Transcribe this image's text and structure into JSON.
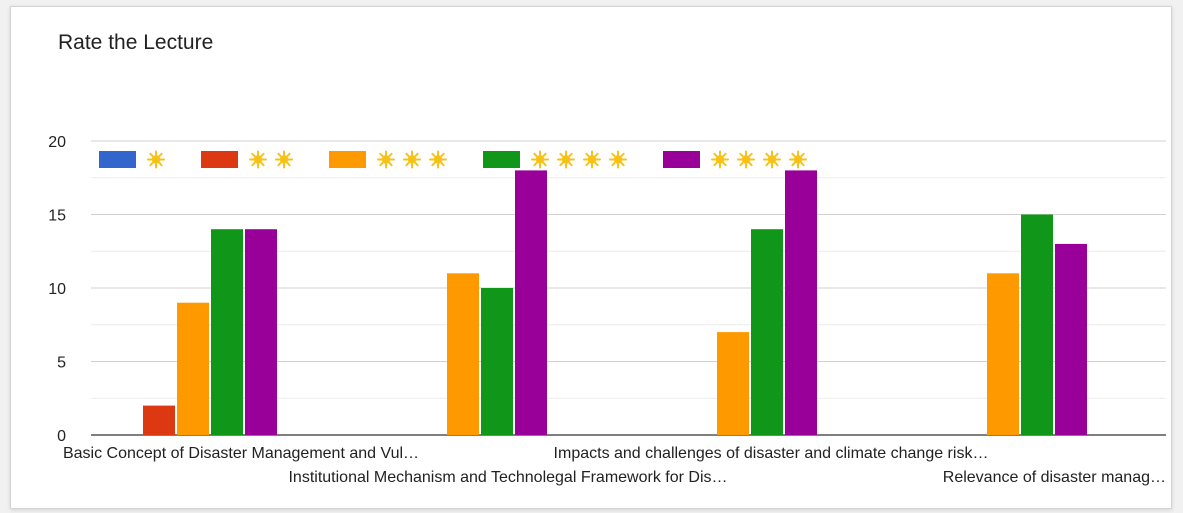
{
  "title": "Rate the Lecture",
  "colors": {
    "star": "#f6c21a",
    "grid": "#d0d0d0",
    "axis": "#333333"
  },
  "chart_data": {
    "type": "bar",
    "title": "Rate the Lecture",
    "xlabel": "",
    "ylabel": "",
    "ylim": [
      0,
      20
    ],
    "yticks": [
      0,
      5,
      10,
      15,
      20
    ],
    "grid": true,
    "legend_position": "top",
    "categories": [
      "Basic Concept of Disaster Management and Vul…",
      "Institutional Mechanism and Technolegal Framework for Dis…",
      "Impacts and challenges of disaster and climate change risk…",
      "Relevance of disaster manag…"
    ],
    "series": [
      {
        "stars": 1,
        "icon": "sun-icon",
        "color": "#3366cc",
        "values": [
          0,
          0,
          0,
          0
        ]
      },
      {
        "stars": 2,
        "icon": "sun-icon",
        "color": "#dc3912",
        "values": [
          2,
          0,
          0,
          0
        ]
      },
      {
        "stars": 3,
        "icon": "sun-icon",
        "color": "#ff9900",
        "values": [
          9,
          11,
          7,
          11
        ]
      },
      {
        "stars": 4,
        "icon": "sun-icon",
        "color": "#109618",
        "values": [
          14,
          10,
          14,
          15
        ]
      },
      {
        "stars": 4,
        "icon": "sun-icon",
        "color": "#990099",
        "values": [
          14,
          18,
          18,
          13
        ]
      }
    ]
  }
}
